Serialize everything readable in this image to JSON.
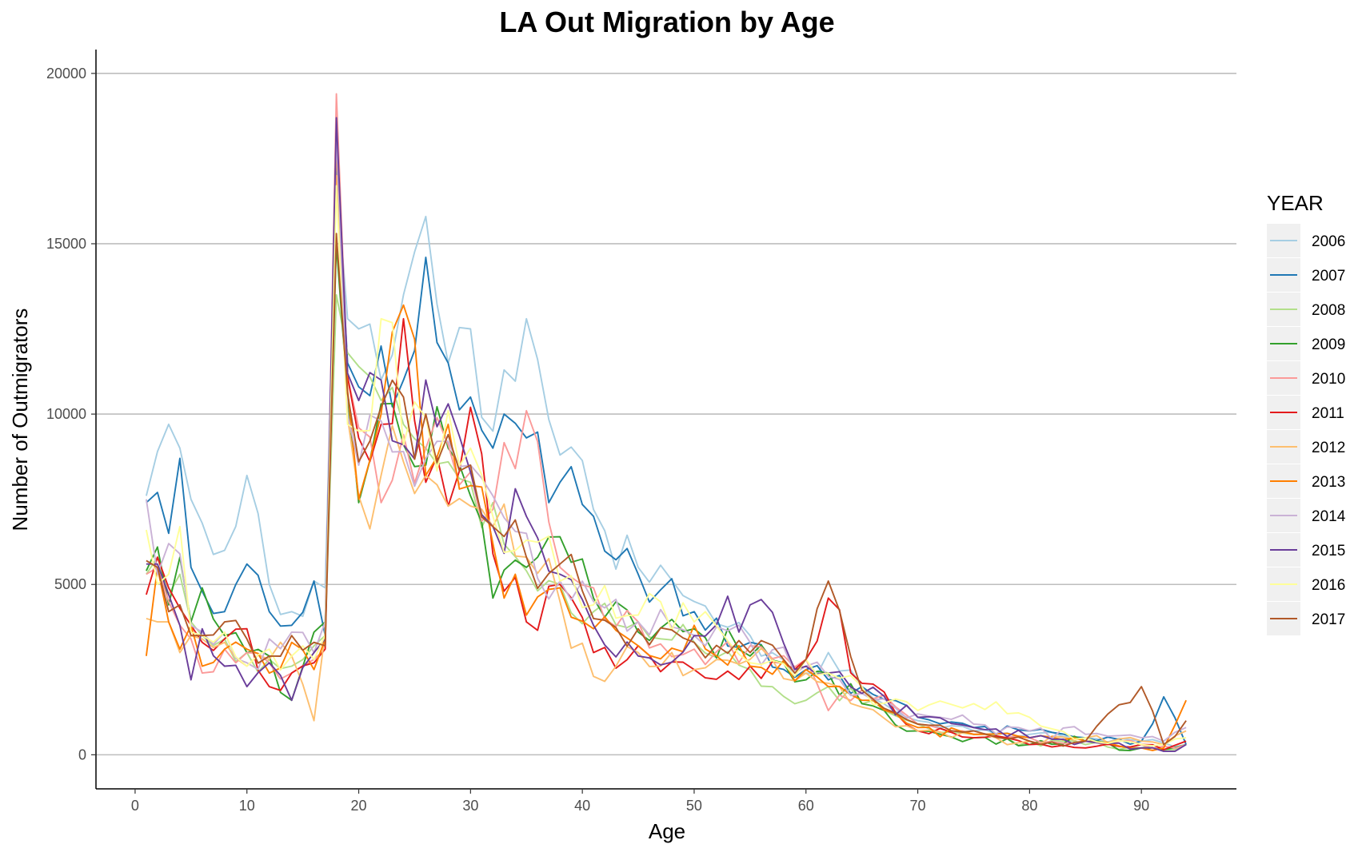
{
  "chart_data": {
    "type": "line",
    "title": "LA Out Migration by Age",
    "xlabel": "Age",
    "ylabel": "Number of Outmigrators",
    "xlim": [
      -3.5,
      98.5
    ],
    "ylim": [
      -1000,
      20700
    ],
    "x_ticks": [
      0,
      10,
      20,
      30,
      40,
      50,
      60,
      70,
      80,
      90
    ],
    "y_ticks": [
      0,
      5000,
      10000,
      15000,
      20000
    ],
    "grid": "horizontal major",
    "legend": {
      "title": "YEAR",
      "placement": "right"
    },
    "anchor_ages": [
      1,
      2,
      3,
      4,
      5,
      6,
      8,
      10,
      12,
      14,
      16,
      17,
      18,
      19,
      20,
      22,
      24,
      26,
      28,
      30,
      32,
      35,
      38,
      41,
      45,
      50,
      55,
      60,
      62,
      65,
      70,
      75,
      80,
      85,
      90,
      92,
      94
    ],
    "series": [
      {
        "name": "2006",
        "color": "#a6cee3",
        "seed": 11,
        "noise": 0.14,
        "anchors": [
          7600,
          8900,
          9700,
          9000,
          7500,
          6800,
          6000,
          8200,
          5000,
          4200,
          5100,
          4900,
          17000,
          12800,
          12500,
          11000,
          13500,
          15800,
          11500,
          12500,
          9500,
          12800,
          8800,
          7200,
          5500,
          4500,
          3500,
          2400,
          3000,
          2000,
          1000,
          700,
          600,
          500,
          400,
          350,
          300
        ]
      },
      {
        "name": "2007",
        "color": "#1f78b4",
        "seed": 23,
        "noise": 0.14,
        "anchors": [
          7400,
          7700,
          6500,
          8700,
          5500,
          4800,
          4200,
          5600,
          4200,
          3800,
          5100,
          3500,
          17500,
          11500,
          10800,
          12000,
          11000,
          14600,
          11500,
          10500,
          9000,
          9300,
          8000,
          7000,
          5300,
          4200,
          3300,
          2500,
          2200,
          2000,
          1100,
          800,
          700,
          500,
          400,
          1700,
          300
        ]
      },
      {
        "name": "2008",
        "color": "#b2df8a",
        "seed": 37,
        "noise": 0.16,
        "anchors": [
          5300,
          5800,
          4700,
          5300,
          3900,
          3500,
          3400,
          3000,
          2800,
          2600,
          3200,
          3500,
          13500,
          11800,
          11400,
          10400,
          9700,
          9000,
          8600,
          8000,
          7400,
          5400,
          5000,
          4200,
          3900,
          3300,
          2500,
          1600,
          2000,
          1500,
          900,
          600,
          400,
          300,
          200,
          150,
          300
        ]
      },
      {
        "name": "2009",
        "color": "#33a02c",
        "seed": 41,
        "noise": 0.16,
        "anchors": [
          5400,
          6100,
          4400,
          5800,
          3900,
          4900,
          3500,
          3000,
          2900,
          1600,
          3600,
          3900,
          15000,
          10500,
          7400,
          10300,
          9100,
          8500,
          9000,
          7600,
          4600,
          5500,
          6400,
          4600,
          3600,
          3700,
          2900,
          2200,
          2400,
          1500,
          700,
          500,
          300,
          400,
          200,
          150,
          300
        ]
      },
      {
        "name": "2010",
        "color": "#fb9a99",
        "seed": 53,
        "noise": 0.16,
        "anchors": [
          5300,
          5500,
          4500,
          3800,
          3400,
          2400,
          3100,
          3000,
          2700,
          2400,
          2800,
          3100,
          19400,
          11100,
          9600,
          7400,
          9400,
          9000,
          9100,
          8300,
          7200,
          10100,
          5500,
          4900,
          3900,
          3100,
          3200,
          2800,
          1300,
          1900,
          900,
          600,
          500,
          400,
          300,
          250,
          300
        ]
      },
      {
        "name": "2011",
        "color": "#e31a1c",
        "seed": 67,
        "noise": 0.16,
        "anchors": [
          4700,
          5800,
          4900,
          4300,
          3800,
          3300,
          3400,
          3700,
          2000,
          2400,
          2700,
          3100,
          18500,
          11100,
          9300,
          9700,
          12800,
          8000,
          7300,
          10200,
          5900,
          3900,
          5000,
          3000,
          3200,
          2500,
          2600,
          2800,
          4600,
          2100,
          700,
          500,
          300,
          200,
          300,
          150,
          400
        ]
      },
      {
        "name": "2012",
        "color": "#fdbf6f",
        "seed": 71,
        "noise": 0.16,
        "anchors": [
          4000,
          3900,
          3900,
          3000,
          3500,
          3400,
          3300,
          2600,
          2800,
          2900,
          1000,
          3600,
          17000,
          9900,
          7600,
          8200,
          8600,
          8200,
          7300,
          7300,
          6700,
          5800,
          4500,
          2300,
          3000,
          2500,
          2800,
          2400,
          2100,
          1400,
          700,
          600,
          400,
          500,
          400,
          300,
          700
        ]
      },
      {
        "name": "2013",
        "color": "#ff7f00",
        "seed": 83,
        "noise": 0.16,
        "anchors": [
          2900,
          5500,
          3900,
          3100,
          3800,
          2600,
          3100,
          3100,
          2400,
          3300,
          2500,
          3400,
          17900,
          10700,
          7500,
          10000,
          13200,
          8200,
          9700,
          7900,
          6200,
          4100,
          4900,
          3700,
          3200,
          3800,
          2600,
          2500,
          2000,
          1600,
          800,
          600,
          500,
          400,
          200,
          200,
          1600
        ]
      },
      {
        "name": "2014",
        "color": "#cab2d6",
        "seed": 97,
        "noise": 0.16,
        "anchors": [
          7500,
          5300,
          6200,
          5900,
          3800,
          3600,
          3600,
          2700,
          3400,
          3600,
          3000,
          3900,
          18200,
          10000,
          8500,
          9800,
          8900,
          8700,
          9200,
          8500,
          7600,
          6500,
          5100,
          4500,
          3900,
          3500,
          3300,
          2600,
          2300,
          1800,
          1200,
          900,
          700,
          600,
          500,
          400,
          800
        ]
      },
      {
        "name": "2015",
        "color": "#6a3d9a",
        "seed": 101,
        "noise": 0.16,
        "anchors": [
          5600,
          5600,
          4700,
          3800,
          2200,
          3700,
          2600,
          2000,
          2700,
          1600,
          3000,
          3400,
          18700,
          11200,
          10400,
          11000,
          9100,
          11000,
          10300,
          8300,
          6700,
          7000,
          5300,
          3800,
          2900,
          3500,
          4400,
          2600,
          2400,
          1800,
          1100,
          800,
          500,
          400,
          200,
          100,
          300
        ]
      },
      {
        "name": "2016",
        "color": "#ffff99",
        "seed": 113,
        "noise": 0.16,
        "anchors": [
          6600,
          5000,
          5300,
          6700,
          3600,
          3500,
          3600,
          2600,
          3100,
          2900,
          2800,
          3500,
          16700,
          9700,
          9500,
          12800,
          9100,
          9900,
          10100,
          9000,
          7000,
          6300,
          5100,
          4400,
          4100,
          3900,
          2700,
          2800,
          2400,
          2000,
          1300,
          1500,
          1100,
          500,
          300,
          300,
          500
        ]
      },
      {
        "name": "2017",
        "color": "#b15928",
        "seed": 127,
        "noise": 0.16,
        "anchors": [
          5700,
          5500,
          4200,
          4400,
          3500,
          3500,
          3900,
          3400,
          2900,
          3500,
          3300,
          3200,
          15300,
          10600,
          8600,
          10200,
          10500,
          10000,
          9400,
          8500,
          6700,
          5800,
          5600,
          4000,
          3700,
          3300,
          3000,
          2800,
          5100,
          1900,
          900,
          700,
          400,
          400,
          2000,
          300,
          1000
        ]
      }
    ]
  }
}
